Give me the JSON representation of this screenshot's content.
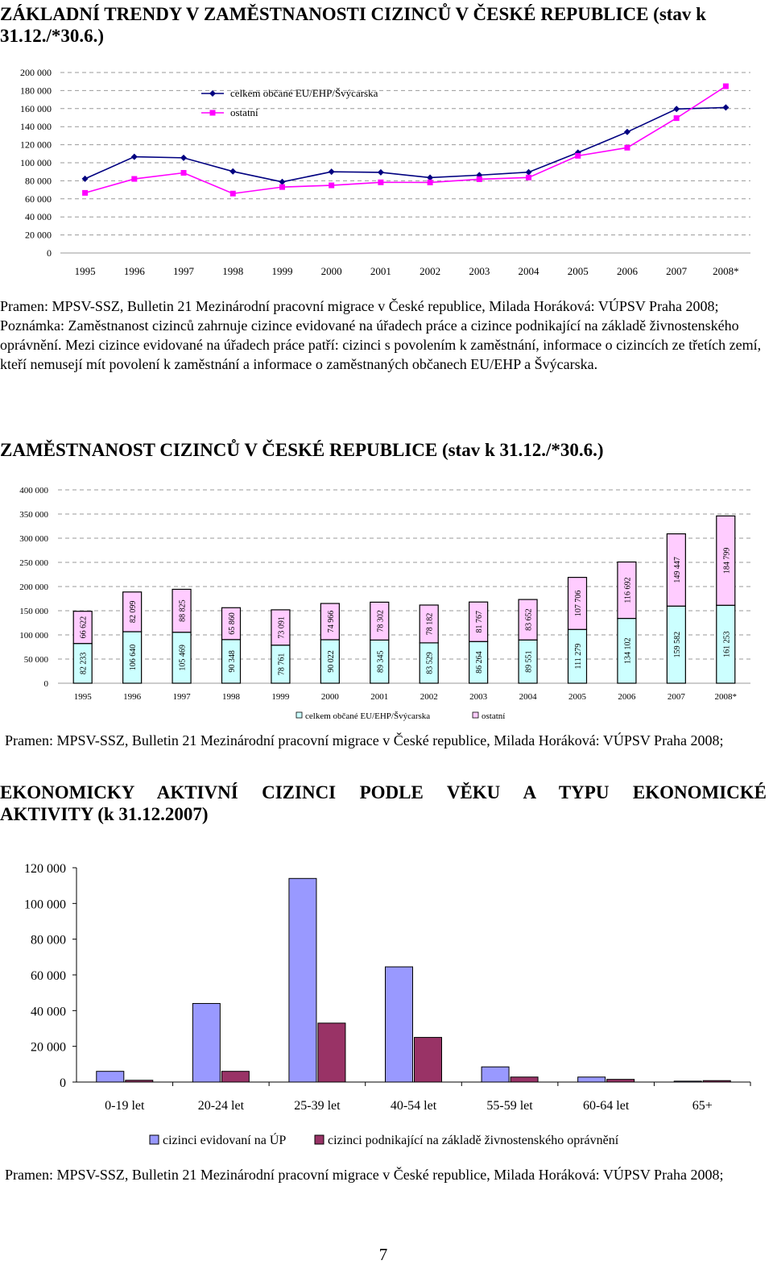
{
  "headings": {
    "h1": "ZÁKLADNÍ TRENDY V ZAMĚSTNANOSTI CIZINCŮ V ČESKÉ REPUBLICE (stav k 31.12./*30.6.)",
    "h2": "ZAMĚSTNANOST CIZINCŮ V ČESKÉ REPUBLICE (stav k 31.12./*30.6.)",
    "h3_line1": "EKONOMICKY AKTIVNÍ CIZINCI PODLE VĚKU A TYPU EKONOMICKÉ",
    "h3_line2": "AKTIVITY (k 31.12.2007)"
  },
  "paragraphs": {
    "p1_source": "Pramen: MPSV-SSZ, Bulletin 21 Mezinárodní pracovní migrace v České republice, Milada Horáková: VÚPSV Praha 2008;",
    "p1_note_a": "Poznámka: Zaměstnanost cizinců zahrnuje cizince evidované na úřadech práce a cizince podnikající na základě živnostenského oprávnění.",
    "p1_note_b": "Mezi cizince evidované na úřadech práce patří: cizinci s povolením k zaměstnání, informace o cizincích ze třetích zemí, kteří nemusejí mít povolení k zaměstnání a  informace o zaměstnaných občanech EU/EHP a Švýcarska.",
    "p2_source": "Pramen: MPSV-SSZ, Bulletin 21 Mezinárodní pracovní migrace v České republice, Milada Horáková: VÚPSV Praha 2008;",
    "p3_source": "Pramen: MPSV-SSZ, Bulletin 21 Mezinárodní pracovní migrace v České republice, Milada Horáková: VÚPSV Praha 2008;"
  },
  "page_number": "7",
  "chart_data": [
    {
      "type": "line",
      "title": "",
      "xlabel": "",
      "ylabel": "",
      "x": [
        "1995",
        "1996",
        "1997",
        "1998",
        "1999",
        "2000",
        "2001",
        "2002",
        "2003",
        "2004",
        "2005",
        "2006",
        "2007",
        "2008*"
      ],
      "ylim": [
        0,
        200000
      ],
      "yticks": [
        "0",
        "20 000",
        "40 000",
        "60 000",
        "80 000",
        "100 000",
        "120 000",
        "140 000",
        "160 000",
        "180 000",
        "200 000"
      ],
      "grid": true,
      "legend": "top-left",
      "series": [
        {
          "name": "celkem občané EU/EHP/Švýcarska",
          "color": "#000080",
          "marker": "diamond",
          "values": [
            82233,
            106640,
            105469,
            90348,
            78761,
            90022,
            89345,
            83529,
            86264,
            89551,
            111279,
            134102,
            159582,
            161253
          ]
        },
        {
          "name": "ostatní",
          "color": "#ff00ff",
          "marker": "square",
          "values": [
            66622,
            82099,
            88825,
            65860,
            73091,
            74966,
            78302,
            78182,
            81767,
            83652,
            107706,
            116692,
            149447,
            184799
          ]
        }
      ]
    },
    {
      "type": "bar",
      "stacked": true,
      "title": "",
      "xlabel": "",
      "ylabel": "",
      "categories": [
        "1995",
        "1996",
        "1997",
        "1998",
        "1999",
        "2000",
        "2001",
        "2002",
        "2003",
        "2004",
        "2005",
        "2006",
        "2007",
        "2008*"
      ],
      "ylim": [
        0,
        400000
      ],
      "yticks": [
        "0",
        "50 000",
        "100 000",
        "150 000",
        "200 000",
        "250 000",
        "300 000",
        "350 000",
        "400 000"
      ],
      "grid": true,
      "legend": "bottom",
      "series": [
        {
          "name": "celkem občané EU/EHP/Švýcarska",
          "color": "#ccffff",
          "values": [
            82233,
            106640,
            105469,
            90348,
            78761,
            90022,
            89345,
            83529,
            86264,
            89551,
            111279,
            134102,
            159582,
            161253
          ],
          "labels": [
            "82 233",
            "106 640",
            "105 469",
            "90 348",
            "78 761",
            "90 022",
            "89 345",
            "83 529",
            "86 264",
            "89 551",
            "111 279",
            "134 102",
            "159 582",
            "161 253"
          ]
        },
        {
          "name": "ostatní",
          "color": "#ffccff",
          "values": [
            66622,
            82099,
            88825,
            65860,
            73091,
            74966,
            78302,
            78182,
            81767,
            83652,
            107706,
            116692,
            149447,
            184799
          ],
          "labels": [
            "66 622",
            "82 099",
            "88 825",
            "65 860",
            "73 091",
            "74 966",
            "78 302",
            "78 182",
            "81 767",
            "83 652",
            "107 706",
            "116 692",
            "149 447",
            "184 799"
          ]
        }
      ]
    },
    {
      "type": "bar",
      "title": "",
      "xlabel": "",
      "ylabel": "",
      "categories": [
        "0-19 let",
        "20-24 let",
        "25-39 let",
        "40-54 let",
        "55-59 let",
        "60-64 let",
        "65+"
      ],
      "ylim": [
        0,
        120000
      ],
      "yticks": [
        "0",
        "20 000",
        "40 000",
        "60 000",
        "80 000",
        "100 000",
        "120 000"
      ],
      "grid": false,
      "legend": "bottom",
      "series": [
        {
          "name": "cizinci evidovaní na ÚP",
          "color": "#9999ff",
          "values": [
            6000,
            44000,
            114000,
            64500,
            8500,
            2800,
            500
          ]
        },
        {
          "name": "cizinci podnikající na základě živnostenského oprávnění",
          "color": "#993366",
          "values": [
            1000,
            6000,
            33000,
            25000,
            2800,
            1500,
            800
          ]
        }
      ]
    }
  ]
}
